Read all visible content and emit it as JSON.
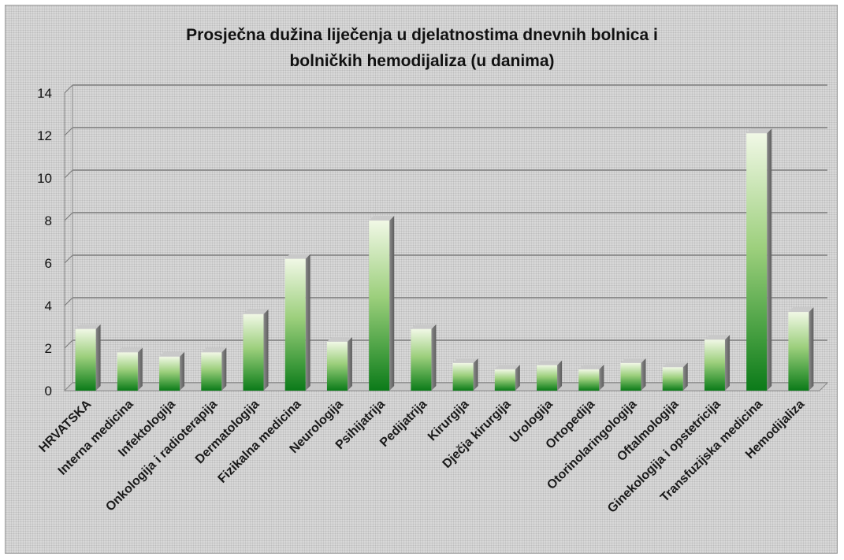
{
  "chart_data": {
    "type": "bar",
    "title": "Prosječna dužina liječenja u djelatnostima dnevnih bolnica i\nbolničkih hemodijaliza  (u danima)",
    "xlabel": "",
    "ylabel": "",
    "ylim": [
      0,
      14
    ],
    "yticks": [
      0,
      2,
      4,
      6,
      8,
      10,
      12,
      14
    ],
    "grid": true,
    "legend": "none",
    "categories": [
      "HRVATSKA",
      "Interna medicina",
      "Infektologija",
      "Onkologija i radioterapija",
      "Dermatologija",
      "Fizikalna medicina",
      "Neurologija",
      "Psihijatrija",
      "Pedijatrija",
      "Kirurgija",
      "Dječja kirurgija",
      "Urologija",
      "Ortopedija",
      "Otorinolaringologija",
      "Oftalmologija",
      "Ginekologija i opstetricija",
      "Transfuzijska medicina",
      "Hemodijaliza"
    ],
    "values": [
      2.9,
      1.8,
      1.6,
      1.8,
      3.6,
      6.2,
      2.3,
      8.0,
      2.9,
      1.3,
      1.0,
      1.2,
      1.0,
      1.3,
      1.1,
      2.4,
      12.1,
      3.7
    ],
    "colors": {
      "bar_top": "#f1f8e6",
      "bar_mid": "#8cc46c",
      "bar_bottom": "#0b7a19",
      "bar_side": "#7d7d7d",
      "gridline": "#7b7b7b",
      "floor": "#c8c8c8"
    }
  }
}
